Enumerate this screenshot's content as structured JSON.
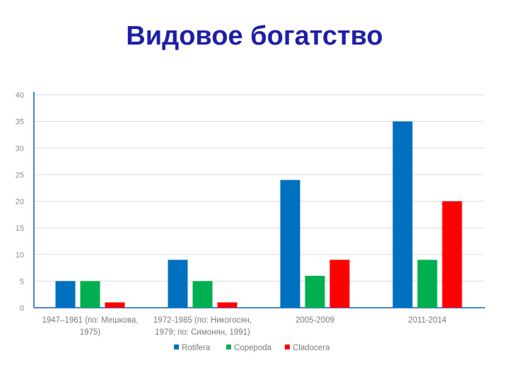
{
  "slide": {
    "title": "Видовое богатство"
  },
  "chart_data": {
    "type": "bar",
    "title": "",
    "xlabel": "",
    "ylabel": "",
    "ylim": [
      0,
      40
    ],
    "yticks": [
      0,
      5,
      10,
      15,
      20,
      25,
      30,
      35,
      40
    ],
    "grid": true,
    "legend_position": "bottom",
    "categories": [
      [
        "1947–1961 (по: Мешкова,",
        "1975)"
      ],
      [
        "1972-1985 (по: Никогосян,",
        "1979; по: Симонян, 1991)"
      ],
      [
        "2005-2009"
      ],
      [
        "2011-2014"
      ]
    ],
    "series": [
      {
        "name": "Rotifera",
        "color": "#0070c0",
        "values": [
          5,
          9,
          24,
          35
        ]
      },
      {
        "name": "Copepoda",
        "color": "#00b050",
        "values": [
          5,
          5,
          6,
          9
        ]
      },
      {
        "name": "Cladocera",
        "color": "#ff0000",
        "values": [
          1,
          1,
          9,
          20
        ]
      }
    ]
  }
}
